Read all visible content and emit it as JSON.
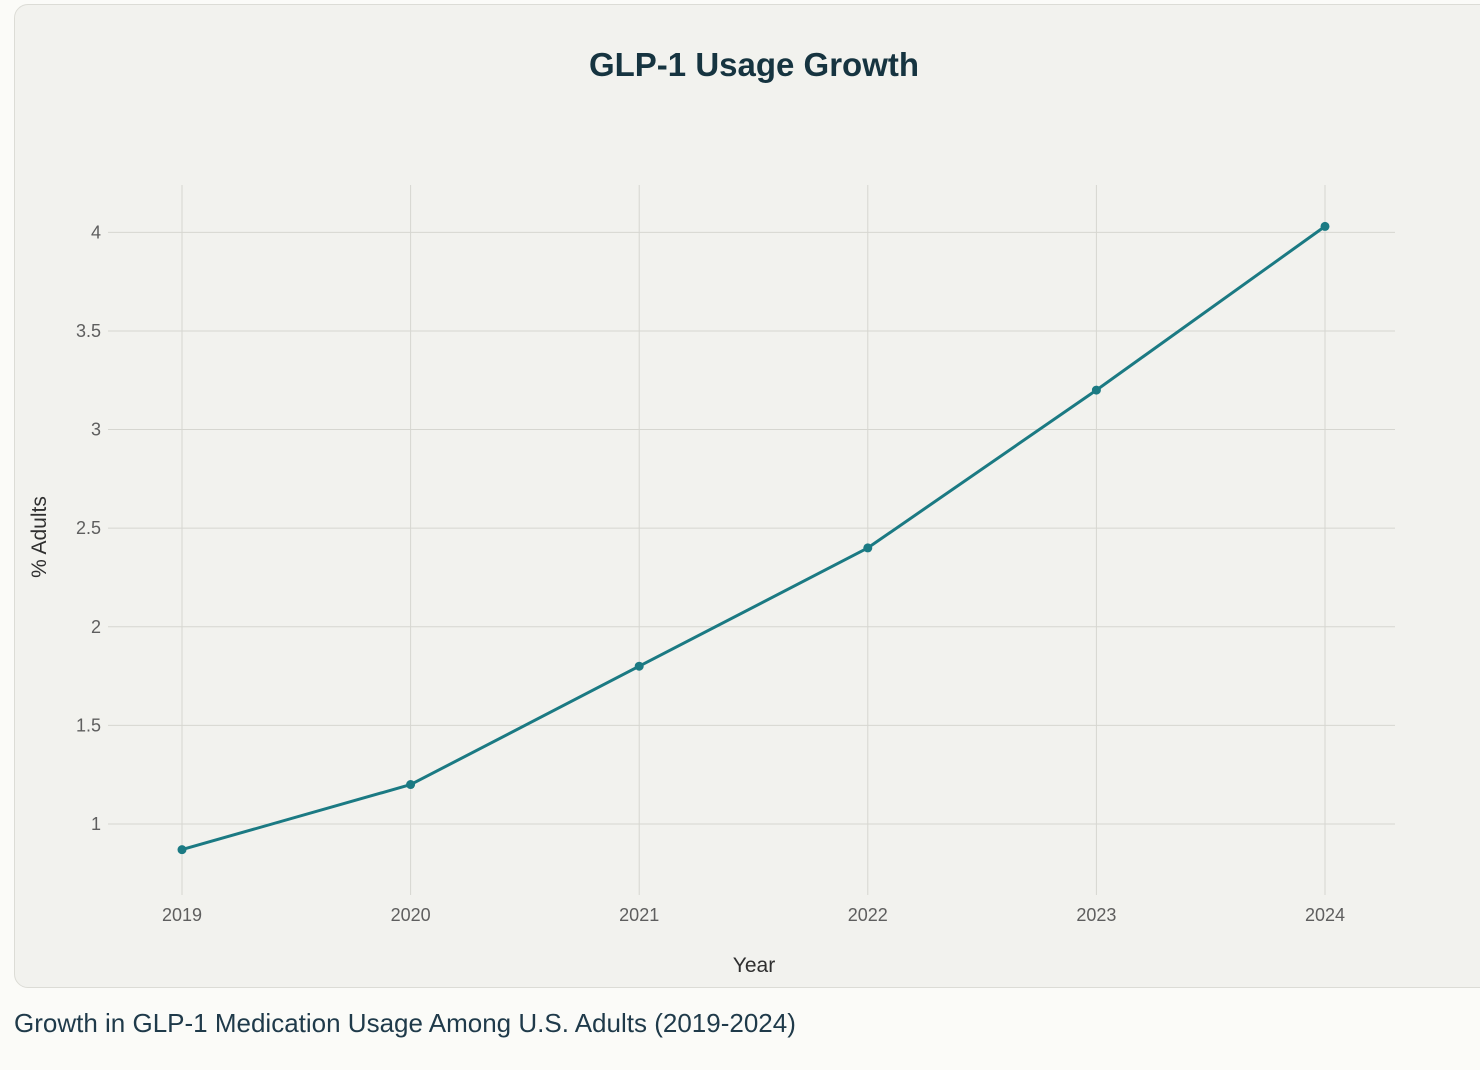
{
  "caption": "Growth in GLP-1 Medication Usage Among U.S. Adults (2019-2024)",
  "colors": {
    "line": "#1b7a83",
    "grid": "#d6d6d0",
    "card_background": "#f2f2ee"
  },
  "chart_data": {
    "type": "line",
    "title": "GLP-1 Usage Growth",
    "xlabel": "Year",
    "ylabel": "% Adults",
    "categories": [
      "2019",
      "2020",
      "2021",
      "2022",
      "2023",
      "2024"
    ],
    "series": [
      {
        "values": [
          0.87,
          1.2,
          1.8,
          2.4,
          3.2,
          4.03
        ]
      }
    ],
    "yticks": [
      "1",
      "1.5",
      "2",
      "2.5",
      "3",
      "3.5",
      "4"
    ],
    "ylim": [
      0.64,
      4.24
    ],
    "grid": true,
    "markers": true,
    "legend": "none"
  }
}
